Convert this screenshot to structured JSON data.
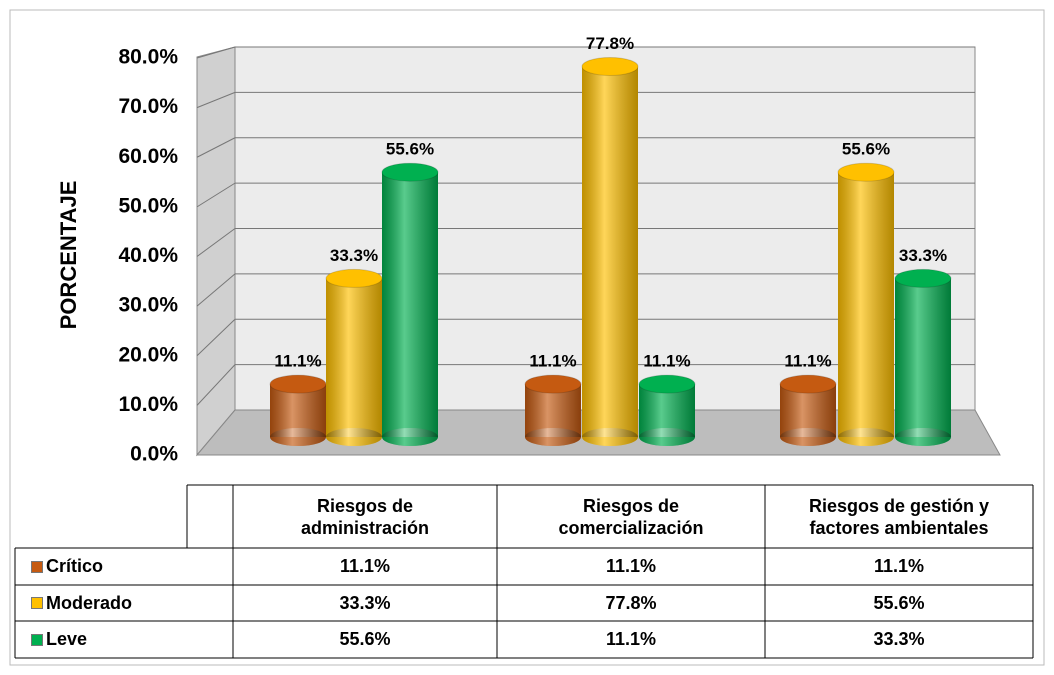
{
  "chart_data": {
    "type": "bar",
    "y_label": "PORCENTAJE",
    "categories": [
      "Riesgos de administración",
      "Riesgos de comercialización",
      "Riesgos de gestión y factores ambientales"
    ],
    "series": [
      {
        "name": "Crítico",
        "color": "#c55a11",
        "values": [
          11.1,
          11.1,
          11.1
        ],
        "value_labels": [
          "11.1%",
          "11.1%",
          "11.1%"
        ]
      },
      {
        "name": "Moderado",
        "color": "#ffc000",
        "values": [
          33.3,
          77.8,
          55.6
        ],
        "value_labels": [
          "33.3%",
          "77.8%",
          "55.6%"
        ]
      },
      {
        "name": "Leve",
        "color": "#00b050",
        "values": [
          55.6,
          11.1,
          33.3
        ],
        "value_labels": [
          "55.6%",
          "11.1%",
          "33.3%"
        ]
      }
    ],
    "ylim": [
      0,
      80
    ],
    "yticks": [
      {
        "value": 0,
        "label": "0.0%"
      },
      {
        "value": 10,
        "label": "10.0%"
      },
      {
        "value": 20,
        "label": "20.0%"
      },
      {
        "value": 30,
        "label": "30.0%"
      },
      {
        "value": 40,
        "label": "40.0%"
      },
      {
        "value": 50,
        "label": "50.0%"
      },
      {
        "value": 60,
        "label": "60.0%"
      },
      {
        "value": 70,
        "label": "70.0%"
      },
      {
        "value": 80,
        "label": "80.0%"
      }
    ],
    "grid": true
  }
}
